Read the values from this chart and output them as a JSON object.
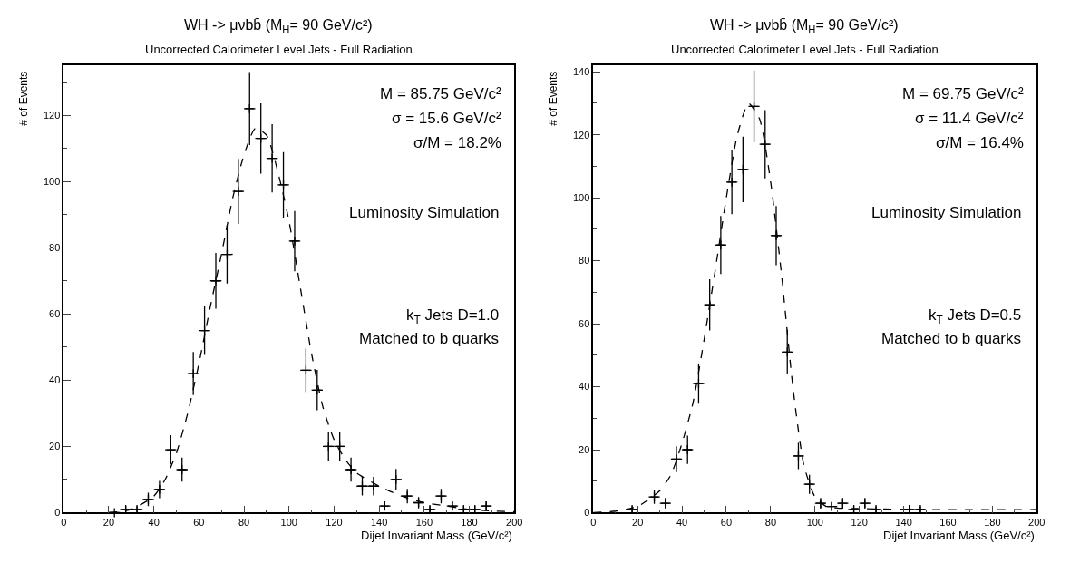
{
  "chart_data": [
    {
      "type": "scatter",
      "title": "WH -> μνbb̄ (M$_{H}$= 90 GeV/c²)",
      "subtitle": "Uncorrected Calorimeter Level Jets - Full Radiation",
      "xlabel": "Dijet Invariant Mass (GeV/c²)",
      "ylabel": "# of Events",
      "xlim": [
        0,
        200
      ],
      "xticks": [
        0,
        20,
        40,
        60,
        80,
        100,
        120,
        140,
        160,
        180,
        200
      ],
      "ylim": [
        0,
        135
      ],
      "yticks": [
        0,
        20,
        40,
        60,
        80,
        100,
        120
      ],
      "series": [
        {
          "marker": "cross",
          "color": "#000000",
          "x": [
            22.5,
            27.5,
            32.5,
            37.5,
            42.5,
            47.5,
            52.5,
            57.5,
            62.5,
            67.5,
            72.5,
            77.5,
            82.5,
            87.5,
            92.5,
            97.5,
            102.5,
            107.5,
            112.5,
            117.5,
            122.5,
            127.5,
            132.5,
            137.5,
            142.5,
            147.5,
            152.5,
            157.5,
            162.5,
            167.5,
            172.5,
            177.5,
            182.5,
            187.5
          ],
          "values": [
            0,
            1,
            1,
            4,
            7,
            19,
            13,
            42,
            55,
            70,
            78,
            97,
            122,
            113,
            107,
            99,
            82,
            43,
            37,
            20,
            20,
            13,
            8,
            8,
            2,
            10,
            5,
            3,
            1,
            5,
            2,
            1,
            1,
            2
          ],
          "errors": [
            0,
            1,
            1,
            2,
            2.6,
            4.4,
            3.6,
            6.5,
            7.4,
            8.4,
            8.8,
            9.8,
            11,
            10.6,
            10.3,
            9.9,
            9.1,
            6.6,
            6.1,
            4.5,
            4.5,
            3.6,
            2.8,
            2.8,
            1.4,
            3.2,
            2.2,
            1.7,
            1,
            2.2,
            1.4,
            1,
            1,
            1.4
          ],
          "xerrors": [
            2.5,
            2.5,
            2.5,
            2.5,
            2.5,
            2.5,
            2.5,
            2.5,
            2.5,
            2.5,
            2.5,
            2.5,
            2.5,
            2.5,
            2.5,
            2.5,
            2.5,
            2.5,
            2.5,
            2.5,
            2.5,
            2.5,
            2.5,
            2.5,
            2.5,
            2.5,
            2.5,
            2.5,
            2.5,
            2.5,
            2.5,
            2.5,
            2.5,
            2.5
          ]
        },
        {
          "type": "line",
          "line_style": "dashed",
          "color": "#000000",
          "x": [
            20,
            30,
            40,
            45,
            50,
            55,
            60,
            65,
            70,
            75,
            80,
            85,
            90,
            95,
            100,
            105,
            110,
            115,
            120,
            125,
            130,
            140,
            150,
            160,
            170,
            180,
            190,
            200
          ],
          "values": [
            0,
            1,
            5,
            10,
            18,
            30,
            45,
            62,
            78,
            95,
            108,
            116,
            114,
            103,
            88,
            68,
            48,
            32,
            22,
            16,
            12,
            8,
            5,
            3,
            2,
            1,
            0.5,
            0.3
          ]
        }
      ],
      "annotations": [
        "M = 85.75 GeV/c²",
        "σ = 15.6 GeV/c²",
        "σ/M = 18.2%",
        "Luminosity Simulation",
        "k$_{T}$ Jets D=1.0",
        "Matched to b quarks"
      ]
    },
    {
      "type": "scatter",
      "title": "WH -> μνbb̄ (M$_{H}$= 90 GeV/c²)",
      "subtitle": "Uncorrected Calorimeter Level Jets - Full Radiation",
      "xlabel": "Dijet Invariant Mass (GeV/c²)",
      "ylabel": "# of Events",
      "xlim": [
        0,
        200
      ],
      "xticks": [
        0,
        20,
        40,
        60,
        80,
        100,
        120,
        140,
        160,
        180,
        200
      ],
      "ylim": [
        0,
        142
      ],
      "yticks": [
        0,
        20,
        40,
        60,
        80,
        100,
        120,
        140
      ],
      "series": [
        {
          "marker": "cross",
          "color": "#000000",
          "x": [
            17.5,
            27.5,
            32.5,
            37.5,
            42.5,
            47.5,
            52.5,
            57.5,
            62.5,
            67.5,
            72.5,
            77.5,
            82.5,
            87.5,
            92.5,
            97.5,
            102.5,
            107.5,
            112.5,
            117.5,
            122.5,
            127.5,
            142.5,
            147.5
          ],
          "values": [
            1,
            5,
            3,
            17,
            20,
            41,
            66,
            85,
            105,
            109,
            129,
            117,
            88,
            51,
            18,
            9,
            3,
            2,
            3,
            1,
            3,
            1,
            1,
            1
          ],
          "errors": [
            1,
            2.2,
            1.7,
            4.1,
            4.5,
            6.4,
            8.1,
            9.2,
            10.2,
            10.4,
            11.4,
            10.8,
            9.4,
            7.1,
            4.2,
            3,
            1.7,
            1.4,
            1.7,
            1,
            1.7,
            1,
            1,
            1
          ],
          "xerrors": [
            2.5,
            2.5,
            2.5,
            2.5,
            2.5,
            2.5,
            2.5,
            2.5,
            2.5,
            2.5,
            2.5,
            2.5,
            2.5,
            2.5,
            2.5,
            2.5,
            2.5,
            2.5,
            2.5,
            2.5,
            2.5,
            2.5,
            2.5,
            2.5
          ]
        },
        {
          "type": "line",
          "line_style": "dashed",
          "color": "#000000",
          "x": [
            0,
            10,
            20,
            30,
            35,
            40,
            45,
            50,
            55,
            60,
            65,
            70,
            75,
            80,
            85,
            90,
            95,
            100,
            105,
            110,
            150,
            200
          ],
          "values": [
            0,
            0.5,
            2,
            7,
            12,
            22,
            35,
            55,
            77,
            100,
            120,
            130,
            125,
            105,
            75,
            40,
            15,
            5,
            2,
            1.5,
            1,
            1
          ]
        }
      ],
      "annotations": [
        "M = 69.75 GeV/c²",
        "σ = 11.4 GeV/c²",
        "σ/M = 16.4%",
        "Luminosity Simulation",
        "k$_{T}$ Jets D=0.5",
        "Matched to b quarks"
      ]
    }
  ]
}
